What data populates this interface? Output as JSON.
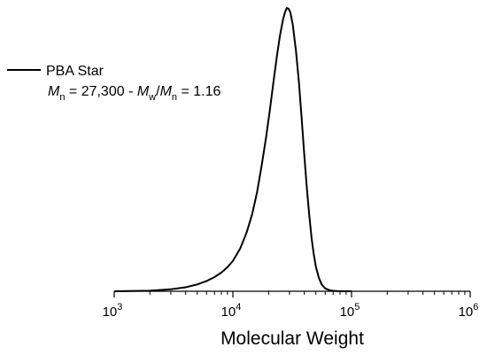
{
  "chart_data": {
    "type": "line",
    "title": "",
    "xlabel": "Molecular Weight",
    "ylabel": "",
    "x_scale": "log",
    "xlim": [
      1000,
      1000000
    ],
    "ylim": [
      0,
      1
    ],
    "grid": false,
    "x_ticks": [
      {
        "value": 1000,
        "base": "10",
        "exp": "3"
      },
      {
        "value": 10000,
        "base": "10",
        "exp": "4"
      },
      {
        "value": 100000,
        "base": "10",
        "exp": "5"
      },
      {
        "value": 1000000,
        "base": "10",
        "exp": "6"
      }
    ],
    "legend": {
      "placement": "top-left",
      "entries": [
        "PBA Star"
      ]
    },
    "annotation": {
      "mn_symbol": "M",
      "mn_sub": "n",
      "mn_value": " = 27,300 - ",
      "mw_symbol": "M",
      "mw_sub": "w",
      "ratio_sep": "/",
      "mn2_symbol": "M",
      "mn2_sub": "n",
      "pdi_value": " = 1.16"
    },
    "series": [
      {
        "name": "PBA Star",
        "color": "#000000",
        "x": [
          1000,
          2000,
          3000,
          4000,
          5000,
          6000,
          7000,
          8000,
          9000,
          10000,
          11500,
          13000,
          14500,
          16000,
          17500,
          19000,
          20500,
          22000,
          23500,
          25000,
          26500,
          27500,
          28500,
          29500,
          30500,
          32000,
          34000,
          36000,
          38000,
          40000,
          42000,
          44000,
          46000,
          48000,
          50000,
          53000,
          56000,
          60000,
          65000,
          70000,
          76000,
          85000,
          100000
        ],
        "y": [
          0.0,
          0.002,
          0.007,
          0.014,
          0.024,
          0.036,
          0.05,
          0.066,
          0.085,
          0.107,
          0.15,
          0.205,
          0.27,
          0.35,
          0.445,
          0.54,
          0.64,
          0.74,
          0.83,
          0.905,
          0.96,
          0.985,
          1.0,
          0.997,
          0.985,
          0.94,
          0.85,
          0.74,
          0.61,
          0.48,
          0.365,
          0.27,
          0.19,
          0.132,
          0.088,
          0.048,
          0.024,
          0.01,
          0.004,
          0.0015,
          0.0006,
          0.0002,
          0.0
        ]
      }
    ]
  }
}
